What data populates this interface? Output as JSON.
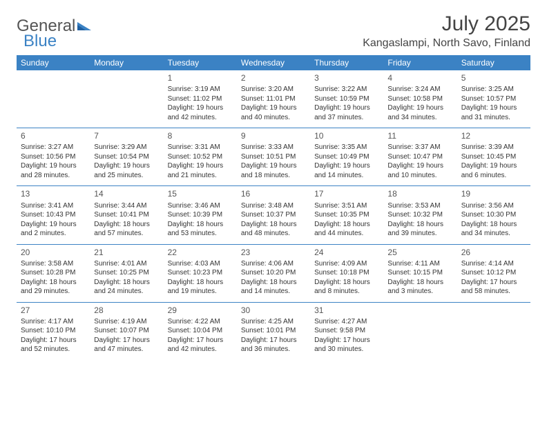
{
  "logo": {
    "text_general": "General",
    "text_blue": "Blue"
  },
  "title": "July 2025",
  "location": "Kangaslampi, North Savo, Finland",
  "colors": {
    "header_bg": "#3b82c4",
    "header_text": "#ffffff",
    "rule": "#3b82c4",
    "text": "#333333",
    "title_text": "#444444"
  },
  "day_headers": [
    "Sunday",
    "Monday",
    "Tuesday",
    "Wednesday",
    "Thursday",
    "Friday",
    "Saturday"
  ],
  "weeks": [
    [
      null,
      null,
      {
        "n": "1",
        "sr": "Sunrise: 3:19 AM",
        "ss": "Sunset: 11:02 PM",
        "dl": "Daylight: 19 hours and 42 minutes."
      },
      {
        "n": "2",
        "sr": "Sunrise: 3:20 AM",
        "ss": "Sunset: 11:01 PM",
        "dl": "Daylight: 19 hours and 40 minutes."
      },
      {
        "n": "3",
        "sr": "Sunrise: 3:22 AM",
        "ss": "Sunset: 10:59 PM",
        "dl": "Daylight: 19 hours and 37 minutes."
      },
      {
        "n": "4",
        "sr": "Sunrise: 3:24 AM",
        "ss": "Sunset: 10:58 PM",
        "dl": "Daylight: 19 hours and 34 minutes."
      },
      {
        "n": "5",
        "sr": "Sunrise: 3:25 AM",
        "ss": "Sunset: 10:57 PM",
        "dl": "Daylight: 19 hours and 31 minutes."
      }
    ],
    [
      {
        "n": "6",
        "sr": "Sunrise: 3:27 AM",
        "ss": "Sunset: 10:56 PM",
        "dl": "Daylight: 19 hours and 28 minutes."
      },
      {
        "n": "7",
        "sr": "Sunrise: 3:29 AM",
        "ss": "Sunset: 10:54 PM",
        "dl": "Daylight: 19 hours and 25 minutes."
      },
      {
        "n": "8",
        "sr": "Sunrise: 3:31 AM",
        "ss": "Sunset: 10:52 PM",
        "dl": "Daylight: 19 hours and 21 minutes."
      },
      {
        "n": "9",
        "sr": "Sunrise: 3:33 AM",
        "ss": "Sunset: 10:51 PM",
        "dl": "Daylight: 19 hours and 18 minutes."
      },
      {
        "n": "10",
        "sr": "Sunrise: 3:35 AM",
        "ss": "Sunset: 10:49 PM",
        "dl": "Daylight: 19 hours and 14 minutes."
      },
      {
        "n": "11",
        "sr": "Sunrise: 3:37 AM",
        "ss": "Sunset: 10:47 PM",
        "dl": "Daylight: 19 hours and 10 minutes."
      },
      {
        "n": "12",
        "sr": "Sunrise: 3:39 AM",
        "ss": "Sunset: 10:45 PM",
        "dl": "Daylight: 19 hours and 6 minutes."
      }
    ],
    [
      {
        "n": "13",
        "sr": "Sunrise: 3:41 AM",
        "ss": "Sunset: 10:43 PM",
        "dl": "Daylight: 19 hours and 2 minutes."
      },
      {
        "n": "14",
        "sr": "Sunrise: 3:44 AM",
        "ss": "Sunset: 10:41 PM",
        "dl": "Daylight: 18 hours and 57 minutes."
      },
      {
        "n": "15",
        "sr": "Sunrise: 3:46 AM",
        "ss": "Sunset: 10:39 PM",
        "dl": "Daylight: 18 hours and 53 minutes."
      },
      {
        "n": "16",
        "sr": "Sunrise: 3:48 AM",
        "ss": "Sunset: 10:37 PM",
        "dl": "Daylight: 18 hours and 48 minutes."
      },
      {
        "n": "17",
        "sr": "Sunrise: 3:51 AM",
        "ss": "Sunset: 10:35 PM",
        "dl": "Daylight: 18 hours and 44 minutes."
      },
      {
        "n": "18",
        "sr": "Sunrise: 3:53 AM",
        "ss": "Sunset: 10:32 PM",
        "dl": "Daylight: 18 hours and 39 minutes."
      },
      {
        "n": "19",
        "sr": "Sunrise: 3:56 AM",
        "ss": "Sunset: 10:30 PM",
        "dl": "Daylight: 18 hours and 34 minutes."
      }
    ],
    [
      {
        "n": "20",
        "sr": "Sunrise: 3:58 AM",
        "ss": "Sunset: 10:28 PM",
        "dl": "Daylight: 18 hours and 29 minutes."
      },
      {
        "n": "21",
        "sr": "Sunrise: 4:01 AM",
        "ss": "Sunset: 10:25 PM",
        "dl": "Daylight: 18 hours and 24 minutes."
      },
      {
        "n": "22",
        "sr": "Sunrise: 4:03 AM",
        "ss": "Sunset: 10:23 PM",
        "dl": "Daylight: 18 hours and 19 minutes."
      },
      {
        "n": "23",
        "sr": "Sunrise: 4:06 AM",
        "ss": "Sunset: 10:20 PM",
        "dl": "Daylight: 18 hours and 14 minutes."
      },
      {
        "n": "24",
        "sr": "Sunrise: 4:09 AM",
        "ss": "Sunset: 10:18 PM",
        "dl": "Daylight: 18 hours and 8 minutes."
      },
      {
        "n": "25",
        "sr": "Sunrise: 4:11 AM",
        "ss": "Sunset: 10:15 PM",
        "dl": "Daylight: 18 hours and 3 minutes."
      },
      {
        "n": "26",
        "sr": "Sunrise: 4:14 AM",
        "ss": "Sunset: 10:12 PM",
        "dl": "Daylight: 17 hours and 58 minutes."
      }
    ],
    [
      {
        "n": "27",
        "sr": "Sunrise: 4:17 AM",
        "ss": "Sunset: 10:10 PM",
        "dl": "Daylight: 17 hours and 52 minutes."
      },
      {
        "n": "28",
        "sr": "Sunrise: 4:19 AM",
        "ss": "Sunset: 10:07 PM",
        "dl": "Daylight: 17 hours and 47 minutes."
      },
      {
        "n": "29",
        "sr": "Sunrise: 4:22 AM",
        "ss": "Sunset: 10:04 PM",
        "dl": "Daylight: 17 hours and 42 minutes."
      },
      {
        "n": "30",
        "sr": "Sunrise: 4:25 AM",
        "ss": "Sunset: 10:01 PM",
        "dl": "Daylight: 17 hours and 36 minutes."
      },
      {
        "n": "31",
        "sr": "Sunrise: 4:27 AM",
        "ss": "Sunset: 9:58 PM",
        "dl": "Daylight: 17 hours and 30 minutes."
      },
      null,
      null
    ]
  ]
}
